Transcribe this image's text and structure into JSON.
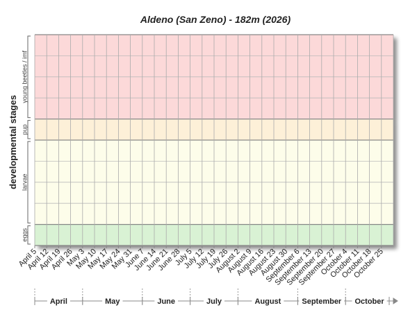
{
  "chart_data": {
    "type": "stage-bands",
    "title": "Aldeno (San Zeno) - 182m (2026)",
    "y_label": "developmental stages",
    "bands": [
      {
        "name": "young beetles / imf",
        "color": "#fcd9d9"
      },
      {
        "name": "pup",
        "color": "#fdf0d8"
      },
      {
        "name": "larvae",
        "color": "#fdfdea"
      },
      {
        "name": "eggs",
        "color": "#d9f2d4"
      }
    ],
    "categories": [
      "April 5",
      "April 12",
      "April 19",
      "April 26",
      "May 3",
      "May 10",
      "May 17",
      "May 24",
      "May 31",
      "June 7",
      "June 14",
      "June 21",
      "June 28",
      "July 5",
      "July 12",
      "July 19",
      "July 26",
      "August 2",
      "August 9",
      "August 16",
      "August 23",
      "August 30",
      "September 6",
      "September 13",
      "September 20",
      "September 27",
      "October 4",
      "October 11",
      "October 18",
      "October 25"
    ],
    "months": [
      "April",
      "May",
      "June",
      "July",
      "August",
      "September",
      "October"
    ]
  }
}
